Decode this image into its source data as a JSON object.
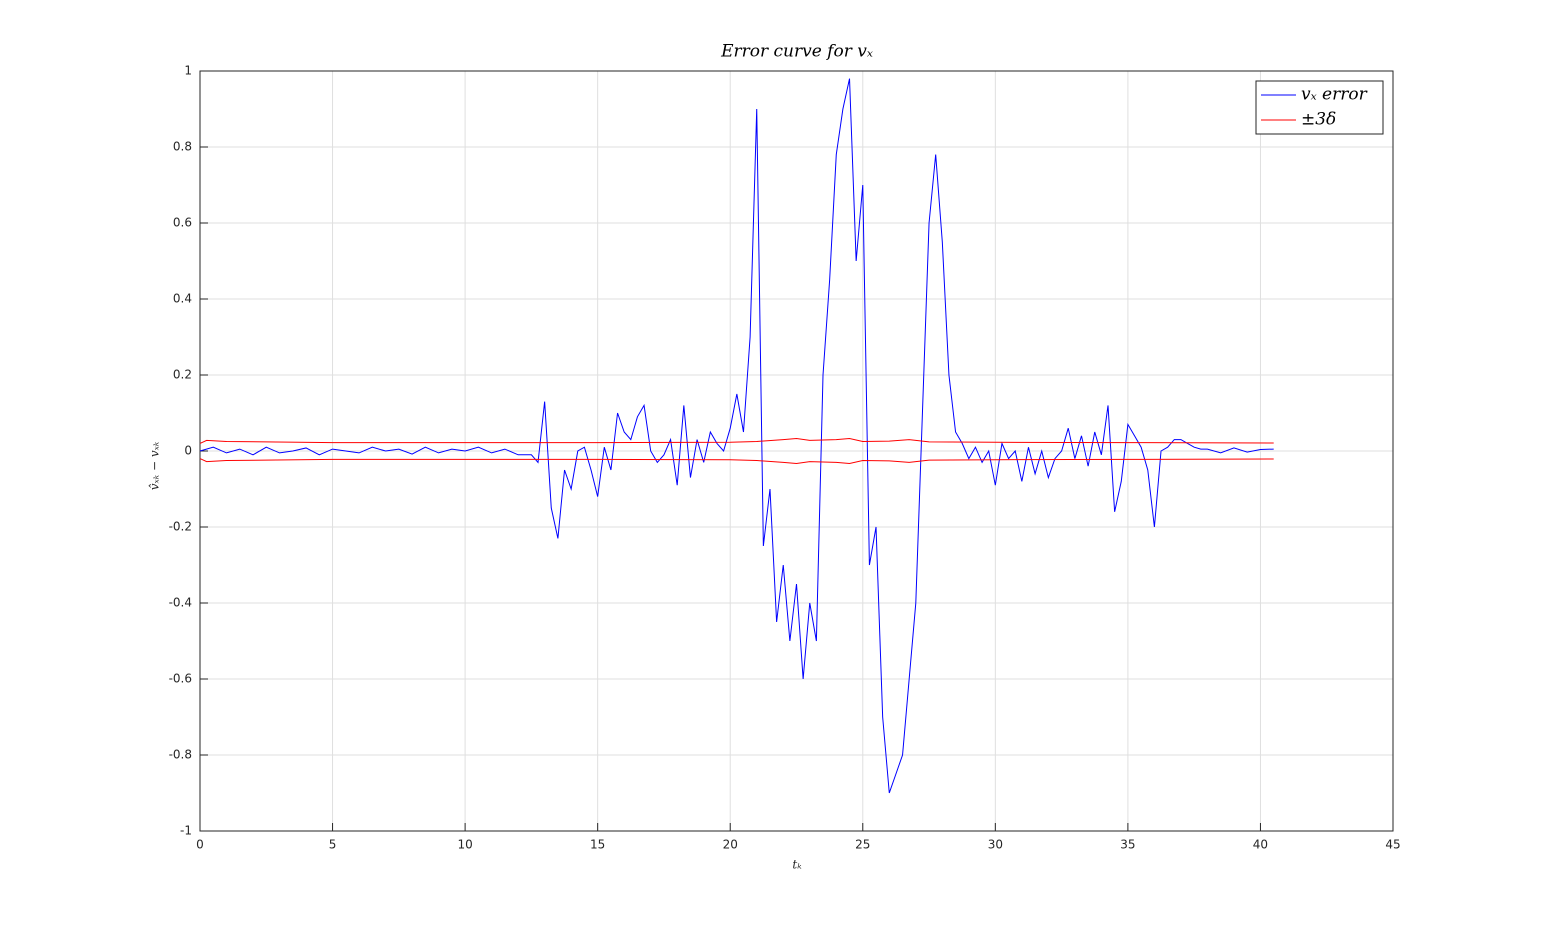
{
  "chart_data": {
    "type": "line",
    "title": "Error curve for vₓ",
    "xlabel": "tₖ",
    "ylabel": "v̂ₓₖ − vₓₖ",
    "xlim": [
      0,
      45
    ],
    "xticks": [
      0,
      5,
      10,
      15,
      20,
      25,
      30,
      35,
      40,
      45
    ],
    "ylim": [
      -1,
      1
    ],
    "yticks": [
      -1,
      -0.8,
      -0.6,
      -0.4,
      -0.2,
      0,
      0.2,
      0.4,
      0.6,
      0.8,
      1
    ],
    "grid": true,
    "legend": "upper right",
    "series": [
      {
        "name": "vₓ error",
        "color": "#0000ff",
        "x": [
          0,
          0.5,
          1,
          1.5,
          2,
          2.5,
          3,
          3.5,
          4,
          4.5,
          5,
          5.5,
          6,
          6.5,
          7,
          7.5,
          8,
          8.5,
          9,
          9.5,
          10,
          10.5,
          11,
          11.5,
          12,
          12.5,
          12.75,
          13,
          13.25,
          13.5,
          13.75,
          14,
          14.25,
          14.5,
          14.75,
          15,
          15.25,
          15.5,
          15.75,
          16,
          16.25,
          16.5,
          16.75,
          17,
          17.25,
          17.5,
          17.75,
          18,
          18.25,
          18.5,
          18.75,
          19,
          19.25,
          19.5,
          19.75,
          20,
          20.25,
          20.5,
          20.75,
          21,
          21.25,
          21.5,
          21.75,
          22,
          22.25,
          22.5,
          22.75,
          23,
          23.25,
          23.5,
          23.75,
          24,
          24.25,
          24.5,
          24.75,
          25,
          25.25,
          25.5,
          25.75,
          26,
          26.25,
          26.5,
          26.75,
          27,
          27.25,
          27.5,
          27.75,
          28,
          28.25,
          28.5,
          28.75,
          29,
          29.25,
          29.5,
          29.75,
          30,
          30.25,
          30.5,
          30.75,
          31,
          31.25,
          31.5,
          31.75,
          32,
          32.25,
          32.5,
          32.75,
          33,
          33.25,
          33.5,
          33.75,
          34,
          34.25,
          34.5,
          34.75,
          35,
          35.25,
          35.5,
          35.75,
          36,
          36.25,
          36.5,
          36.75,
          37,
          37.25,
          37.5,
          37.75,
          38,
          38.5,
          39,
          39.5,
          40,
          40.5
        ],
        "values": [
          0,
          0.01,
          -0.005,
          0.005,
          -0.01,
          0.01,
          -0.005,
          0,
          0.008,
          -0.01,
          0.005,
          0,
          -0.005,
          0.01,
          0,
          0.005,
          -0.008,
          0.01,
          -0.005,
          0.005,
          0,
          0.01,
          -0.005,
          0.005,
          -0.01,
          -0.01,
          -0.03,
          0.13,
          -0.15,
          -0.23,
          -0.05,
          -0.1,
          0,
          0.01,
          -0.05,
          -0.12,
          0.01,
          -0.05,
          0.1,
          0.05,
          0.03,
          0.09,
          0.12,
          0,
          -0.03,
          -0.01,
          0.03,
          -0.09,
          0.12,
          -0.07,
          0.03,
          -0.03,
          0.05,
          0.02,
          0,
          0.06,
          0.15,
          0.05,
          0.3,
          0.9,
          -0.25,
          -0.1,
          -0.45,
          -0.3,
          -0.5,
          -0.35,
          -0.6,
          -0.4,
          -0.5,
          0.2,
          0.45,
          0.78,
          0.9,
          0.98,
          0.5,
          0.7,
          -0.3,
          -0.2,
          -0.7,
          -0.9,
          -0.85,
          -0.8,
          -0.6,
          -0.4,
          0.1,
          0.6,
          0.78,
          0.55,
          0.2,
          0.05,
          0.02,
          -0.02,
          0.01,
          -0.03,
          0,
          -0.09,
          0.02,
          -0.02,
          0,
          -0.08,
          0.01,
          -0.06,
          0,
          -0.07,
          -0.02,
          0,
          0.06,
          -0.02,
          0.04,
          -0.04,
          0.05,
          -0.01,
          0.12,
          -0.16,
          -0.08,
          0.07,
          0.04,
          0.01,
          -0.05,
          -0.2,
          0,
          0.01,
          0.03,
          0.03,
          0.02,
          0.01,
          0.005,
          0.005,
          -0.005,
          0.008,
          -0.003,
          0.004,
          0.005
        ]
      },
      {
        "name": "±3δ",
        "color": "#ff0000",
        "x": [
          0,
          0.25,
          1,
          5,
          10,
          15,
          20,
          21,
          22,
          22.5,
          23,
          24,
          24.5,
          25,
          26,
          26.75,
          27.5,
          30,
          35,
          40.5
        ],
        "values": [
          0.02,
          0.028,
          0.025,
          0.022,
          0.022,
          0.022,
          0.023,
          0.025,
          0.03,
          0.033,
          0.028,
          0.03,
          0.033,
          0.025,
          0.026,
          0.03,
          0.024,
          0.023,
          0.022,
          0.021
        ],
        "lower_values": [
          -0.02,
          -0.028,
          -0.025,
          -0.022,
          -0.022,
          -0.022,
          -0.023,
          -0.025,
          -0.03,
          -0.033,
          -0.028,
          -0.03,
          -0.033,
          -0.025,
          -0.026,
          -0.03,
          -0.024,
          -0.023,
          -0.022,
          -0.021
        ]
      }
    ]
  }
}
